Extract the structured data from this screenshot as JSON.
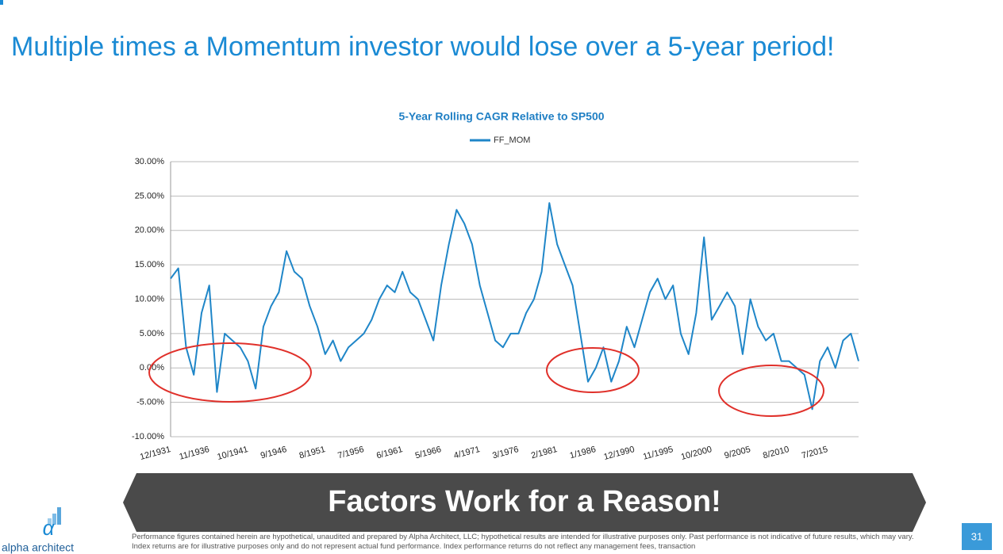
{
  "slide_title": "Multiple times a Momentum investor would lose over a 5-year period!",
  "chart_data": {
    "type": "line",
    "title": "5-Year Rolling CAGR Relative to SP500",
    "categories": [
      "12/1931",
      null,
      null,
      null,
      null,
      "11/1936",
      null,
      null,
      null,
      null,
      "10/1941",
      null,
      null,
      null,
      null,
      "9/1946",
      null,
      null,
      null,
      null,
      "8/1951",
      null,
      null,
      null,
      null,
      "7/1956",
      null,
      null,
      null,
      null,
      "6/1961",
      null,
      null,
      null,
      null,
      "5/1966",
      null,
      null,
      null,
      null,
      "4/1971",
      null,
      null,
      null,
      null,
      "3/1976",
      null,
      null,
      null,
      null,
      "2/1981",
      null,
      null,
      null,
      null,
      "1/1986",
      null,
      null,
      null,
      null,
      "12/1990",
      null,
      null,
      null,
      null,
      "11/1995",
      null,
      null,
      null,
      null,
      "10/2000",
      null,
      null,
      null,
      null,
      "9/2005",
      null,
      null,
      null,
      null,
      "8/2010",
      null,
      null,
      null,
      null,
      "7/2015",
      null,
      null,
      null,
      null
    ],
    "series": [
      {
        "name": "FF_MOM",
        "color": "#1f86c8",
        "values": [
          13,
          14.5,
          3,
          -1,
          8,
          12,
          -3.5,
          5,
          4,
          3,
          1,
          -3,
          6,
          9,
          11,
          17,
          14,
          13,
          9,
          6,
          2,
          4,
          1,
          3,
          4,
          5,
          7,
          10,
          12,
          11,
          14,
          11,
          10,
          7,
          4,
          12,
          18,
          23,
          21,
          18,
          12,
          8,
          4,
          3,
          5,
          5,
          8,
          10,
          14,
          24,
          18,
          15,
          12,
          5,
          -2,
          0,
          3,
          -2,
          1,
          6,
          3,
          7,
          11,
          13,
          10,
          12,
          5,
          2,
          8,
          19,
          7,
          9,
          11,
          9,
          2,
          10,
          6,
          4,
          5,
          1,
          1,
          0,
          -1,
          -6,
          1,
          3,
          0,
          4,
          5,
          1
        ]
      }
    ],
    "ylim": [
      -10,
      30
    ],
    "yticks": [
      {
        "value": -10,
        "label": "-10.00%"
      },
      {
        "value": -5,
        "label": "-5.00%"
      },
      {
        "value": 0,
        "label": "0.00%"
      },
      {
        "value": 5,
        "label": "5.00%"
      },
      {
        "value": 10,
        "label": "10.00%"
      },
      {
        "value": 15,
        "label": "15.00%"
      },
      {
        "value": 20,
        "label": "20.00%"
      },
      {
        "value": 25,
        "label": "25.00%"
      },
      {
        "value": 30,
        "label": "30.00%"
      }
    ],
    "grid": true,
    "legend": "top"
  },
  "banner": "Factors Work for a Reason!",
  "logo_text": "alpha architect",
  "footnote": "Performance figures contained herein are hypothetical, unaudited and prepared by Alpha Architect, LLC; hypothetical results are intended for illustrative purposes only. Past performance is not indicative of future results, which may vary. Index returns are for illustrative purposes only and do not represent actual fund performance.   Index performance returns do not reflect any management fees, transaction",
  "page_number": "31"
}
